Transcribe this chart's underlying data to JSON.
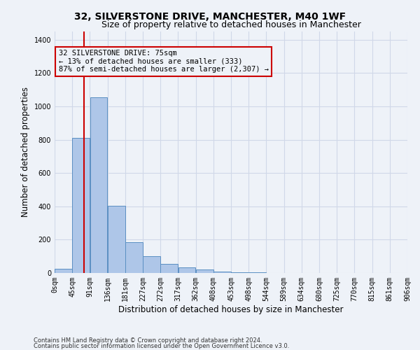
{
  "title": "32, SILVERSTONE DRIVE, MANCHESTER, M40 1WF",
  "subtitle": "Size of property relative to detached houses in Manchester",
  "xlabel": "Distribution of detached houses by size in Manchester",
  "ylabel": "Number of detached properties",
  "footnote1": "Contains HM Land Registry data © Crown copyright and database right 2024.",
  "footnote2": "Contains public sector information licensed under the Open Government Licence v3.0.",
  "annotation_line1": "32 SILVERSTONE DRIVE: 75sqm",
  "annotation_line2": "← 13% of detached houses are smaller (333)",
  "annotation_line3": "87% of semi-detached houses are larger (2,307) →",
  "property_size": 75,
  "bar_color": "#aec6e8",
  "bar_edge_color": "#5a8fc2",
  "grid_color": "#d0d8e8",
  "vline_color": "#cc0000",
  "vline_x": 75,
  "bins": [
    0,
    45,
    90,
    135,
    180,
    225,
    270,
    315,
    360,
    405,
    450,
    495,
    540,
    585,
    630,
    675,
    720,
    765,
    810,
    855,
    900
  ],
  "bin_labels": [
    "0sqm",
    "45sqm",
    "91sqm",
    "136sqm",
    "181sqm",
    "227sqm",
    "272sqm",
    "317sqm",
    "362sqm",
    "408sqm",
    "453sqm",
    "498sqm",
    "544sqm",
    "589sqm",
    "634sqm",
    "680sqm",
    "725sqm",
    "770sqm",
    "815sqm",
    "861sqm",
    "906sqm"
  ],
  "values": [
    25,
    810,
    1055,
    405,
    183,
    100,
    55,
    35,
    20,
    10,
    5,
    3,
    0,
    0,
    0,
    0,
    0,
    0,
    0,
    0
  ],
  "ylim": [
    0,
    1450
  ],
  "background_color": "#eef2f8"
}
